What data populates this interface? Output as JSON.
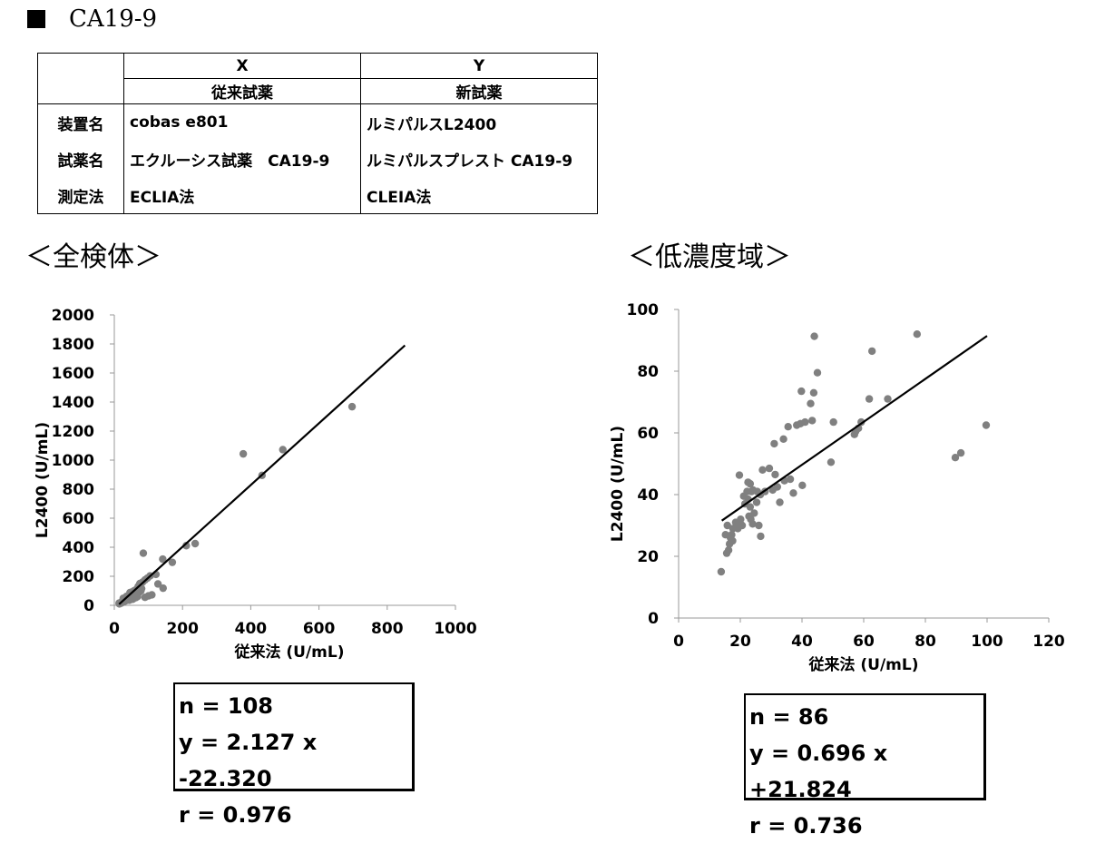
{
  "title": "CA19-9",
  "table": {
    "col_x": "X",
    "col_y": "Y",
    "sub_x": "従来試薬",
    "sub_y": "新試薬",
    "rows": [
      {
        "label": "装置名",
        "x": "cobas e801",
        "y": "ルミパルスL2400"
      },
      {
        "label": "試薬名",
        "x": "エクルーシス試薬　CA19-9",
        "y": "ルミパルスプレスト CA19-9"
      },
      {
        "label": "測定法",
        "x": "ECLIA法",
        "y": "CLEIA法"
      }
    ]
  },
  "section_all": "＜全検体＞",
  "section_low": "＜低濃度域＞",
  "chart_data": [
    {
      "type": "scatter",
      "xlabel": "従来法 (U/mL)",
      "ylabel": "L2400 (U/mL)",
      "xlim": [
        0,
        1000
      ],
      "ylim": [
        0,
        2000
      ],
      "xticks": [
        0,
        200,
        400,
        600,
        800,
        1000
      ],
      "yticks": [
        0,
        200,
        400,
        600,
        800,
        1000,
        1200,
        1400,
        1600,
        1800,
        2000
      ],
      "marker_color": "#808080",
      "line_color": "#000000",
      "regression": {
        "slope": 2.127,
        "intercept": -22.32,
        "x_range": [
          14,
          852
        ]
      },
      "points": [
        [
          697,
          1368
        ],
        [
          378,
          1043
        ],
        [
          494,
          1072
        ],
        [
          433,
          895
        ],
        [
          237,
          425
        ],
        [
          211,
          411
        ],
        [
          170,
          296
        ],
        [
          142,
          318
        ],
        [
          143,
          118
        ],
        [
          128,
          147
        ],
        [
          122,
          213
        ],
        [
          85,
          359
        ],
        [
          105,
          203
        ],
        [
          97,
          187
        ],
        [
          90,
          175
        ],
        [
          83,
          160
        ],
        [
          100,
          65
        ],
        [
          110,
          72
        ],
        [
          90,
          55
        ],
        [
          75,
          150
        ],
        [
          70,
          130
        ],
        [
          65,
          110
        ],
        [
          60,
          95
        ],
        [
          55,
          85
        ],
        [
          50,
          80
        ],
        [
          48,
          70
        ],
        [
          45,
          62
        ],
        [
          42,
          55
        ],
        [
          40,
          45
        ],
        [
          38,
          50
        ],
        [
          35,
          40
        ],
        [
          33,
          30
        ],
        [
          30,
          42
        ],
        [
          28,
          25
        ],
        [
          25,
          30
        ],
        [
          22,
          20
        ],
        [
          20,
          15
        ],
        [
          18,
          18
        ],
        [
          15,
          10
        ],
        [
          14,
          15
        ],
        [
          58,
          100
        ],
        [
          62,
          78
        ],
        [
          52,
          92
        ],
        [
          68,
          60
        ],
        [
          72,
          88
        ],
        [
          78,
          100
        ],
        [
          80,
          115
        ],
        [
          46,
          88
        ],
        [
          44,
          35
        ],
        [
          36,
          62
        ],
        [
          26,
          48
        ],
        [
          57,
          63
        ],
        [
          63,
          53
        ],
        [
          67,
          70
        ],
        [
          54,
          42
        ]
      ],
      "stats": {
        "n": "n = 108",
        "eq": "y = 2.127 x -22.320",
        "r": "r = 0.976"
      }
    },
    {
      "type": "scatter",
      "xlabel": "従来法 (U/mL)",
      "ylabel": "L2400 (U/mL)",
      "xlim": [
        0,
        120
      ],
      "ylim": [
        0,
        100
      ],
      "xticks": [
        0,
        20,
        40,
        60,
        80,
        100,
        120
      ],
      "yticks": [
        0,
        20,
        40,
        60,
        80,
        100
      ],
      "marker_color": "#808080",
      "line_color": "#000000",
      "regression": {
        "slope": 0.696,
        "intercept": 21.824,
        "x_range": [
          14,
          100
        ]
      },
      "points": [
        [
          13.8,
          15
        ],
        [
          15.6,
          21
        ],
        [
          16.2,
          22
        ],
        [
          16.5,
          24
        ],
        [
          17.2,
          27
        ],
        [
          15.2,
          27
        ],
        [
          16.8,
          26
        ],
        [
          17.5,
          25
        ],
        [
          15.8,
          30
        ],
        [
          17.6,
          29
        ],
        [
          18.5,
          31
        ],
        [
          19.2,
          29
        ],
        [
          19.8,
          30
        ],
        [
          20.6,
          30
        ],
        [
          20.1,
          32
        ],
        [
          19.7,
          46.3
        ],
        [
          21.1,
          39.5
        ],
        [
          21.5,
          37
        ],
        [
          22.2,
          41
        ],
        [
          22.5,
          38.5
        ],
        [
          22.5,
          44
        ],
        [
          23.2,
          43.5
        ],
        [
          23.6,
          41
        ],
        [
          24.1,
          41.5
        ],
        [
          22.8,
          33
        ],
        [
          23.4,
          32
        ],
        [
          24.0,
          30.5
        ],
        [
          23.2,
          36
        ],
        [
          24.5,
          34
        ],
        [
          25.3,
          37.5
        ],
        [
          25.5,
          41
        ],
        [
          26.0,
          30
        ],
        [
          26.6,
          26.5
        ],
        [
          26.5,
          40
        ],
        [
          27.2,
          48
        ],
        [
          28.0,
          41
        ],
        [
          29.4,
          48.5
        ],
        [
          30.5,
          41.5
        ],
        [
          31.0,
          56.5
        ],
        [
          31.3,
          46.5
        ],
        [
          32.0,
          42.5
        ],
        [
          32.8,
          37.5
        ],
        [
          34.0,
          58
        ],
        [
          34.3,
          44.5
        ],
        [
          35.5,
          62
        ],
        [
          36.2,
          45
        ],
        [
          37.2,
          40.5
        ],
        [
          38.3,
          62.5
        ],
        [
          39.5,
          63
        ],
        [
          40.1,
          43
        ],
        [
          39.8,
          73.5
        ],
        [
          41.0,
          63.5
        ],
        [
          42.8,
          69.5
        ],
        [
          43.3,
          64
        ],
        [
          43.8,
          73
        ],
        [
          44.0,
          91.3
        ],
        [
          45.0,
          79.5
        ],
        [
          49.4,
          50.5
        ],
        [
          50.2,
          63.5
        ],
        [
          57.0,
          59.5
        ],
        [
          57.4,
          60.5
        ],
        [
          58.3,
          61.5
        ],
        [
          59.2,
          63.5
        ],
        [
          61.8,
          71
        ],
        [
          62.7,
          86.5
        ],
        [
          67.8,
          71
        ],
        [
          77.3,
          92
        ],
        [
          89.7,
          52
        ],
        [
          91.5,
          53.5
        ],
        [
          99.7,
          62.5
        ]
      ],
      "stats": {
        "n": "n = 86",
        "eq": "y = 0.696 x +21.824",
        "r": "r = 0.736"
      }
    }
  ]
}
